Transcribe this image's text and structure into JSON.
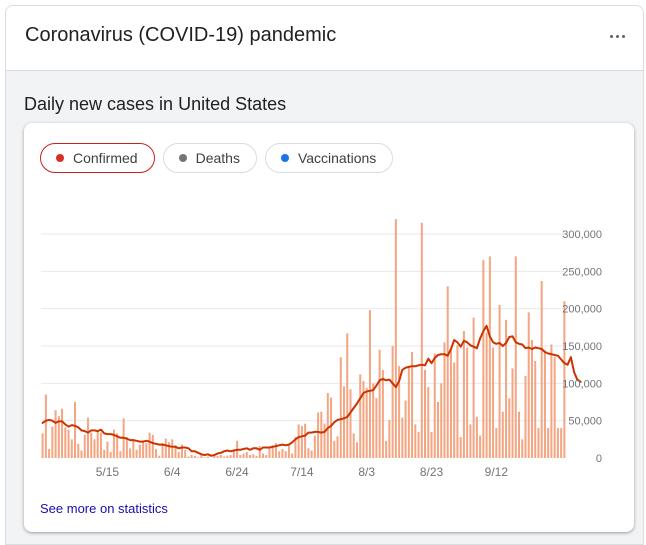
{
  "header": {
    "title": "Coronavirus (COVID-19) pandemic",
    "menu_icon": "more-horiz-icon"
  },
  "section": {
    "heading": "Daily new cases in United States"
  },
  "tabs": [
    {
      "label": "Confirmed",
      "color": "#d93025",
      "active": true
    },
    {
      "label": "Deaths",
      "color": "#757575",
      "active": false
    },
    {
      "label": "Vaccinations",
      "color": "#1a73e8",
      "active": false
    }
  ],
  "footer": {
    "link_label": "See more on statistics"
  },
  "colors": {
    "bar": "#f4a582",
    "line": "#cc3300",
    "grid": "#e8eaed",
    "axis_text": "#70757a"
  },
  "chart_data": {
    "type": "bar",
    "title": "",
    "xlabel": "",
    "ylabel": "",
    "ylim": [
      0,
      300000
    ],
    "yticks": [
      0,
      50000,
      100000,
      150000,
      200000,
      250000,
      300000
    ],
    "ytick_labels": [
      "0",
      "50,000",
      "100,000",
      "150,000",
      "200,000",
      "250,000",
      "300,000"
    ],
    "x_start": "4/25",
    "xtick_labels": [
      {
        "label": "5/15",
        "index": 20
      },
      {
        "label": "6/4",
        "index": 40
      },
      {
        "label": "6/24",
        "index": 60
      },
      {
        "label": "7/14",
        "index": 80
      },
      {
        "label": "8/3",
        "index": 100
      },
      {
        "label": "8/23",
        "index": 120
      },
      {
        "label": "9/12",
        "index": 140
      }
    ],
    "series": [
      {
        "type": "bar",
        "values": [
          33000,
          85000,
          12000,
          42000,
          64000,
          56000,
          66000,
          41000,
          38000,
          25000,
          75000,
          19000,
          10000,
          31000,
          54000,
          34000,
          25000,
          37000,
          34000,
          11000,
          22000,
          8000,
          38000,
          33000,
          9000,
          53000,
          28000,
          13000,
          25000,
          11000,
          18000,
          22000,
          20000,
          34000,
          31000,
          12000,
          3000,
          20000,
          26000,
          21000,
          25000,
          17000,
          8000,
          18000,
          11000,
          2000,
          4000,
          3000,
          1000,
          4000,
          1000,
          2000,
          0,
          5000,
          3000,
          4000,
          2000,
          3000,
          4000,
          11000,
          23000,
          4000,
          6000,
          8000,
          4000,
          5000,
          3000,
          16000,
          6000,
          4000,
          13000,
          17000,
          20000,
          9000,
          12000,
          9000,
          19000,
          6000,
          28000,
          45000,
          43000,
          46000,
          13000,
          10000,
          30000,
          61000,
          62000,
          46000,
          87000,
          81000,
          23000,
          29000,
          135000,
          96000,
          167000,
          92000,
          33000,
          21000,
          112000,
          103000,
          94000,
          198000,
          100000,
          80000,
          145000,
          118000,
          23000,
          51000,
          150000,
          320000,
          123000,
          54000,
          77000,
          122000,
          142000,
          45000,
          35000,
          315000,
          118000,
          95000,
          35000,
          140000,
          75000,
          100000,
          155000,
          230000,
          145000,
          128000,
          151000,
          28000,
          170000,
          148000,
          45000,
          188000,
          55000,
          30000,
          265000,
          168000,
          270000,
          148000,
          40000,
          205000,
          62000,
          185000,
          80000,
          120000,
          270000,
          62000,
          25000,
          110000,
          195000,
          158000,
          130000,
          40000,
          237000,
          144000,
          40000,
          152000,
          135000,
          40000,
          40000,
          210000
        ]
      },
      {
        "type": "line",
        "values": [
          47000,
          50000,
          51000,
          50000,
          47000,
          49000,
          49000,
          45000,
          42000,
          44000,
          43000,
          41000,
          37000,
          36000,
          34000,
          37000,
          37000,
          36000,
          38000,
          33000,
          32000,
          32000,
          31000,
          29000,
          27000,
          27000,
          26000,
          24000,
          24000,
          23000,
          22000,
          22000,
          23000,
          22000,
          20000,
          19000,
          18000,
          18000,
          17000,
          16000,
          15000,
          15000,
          13000,
          14000,
          14000,
          13000,
          9000,
          9000,
          7000,
          5000,
          4000,
          5000,
          3000,
          4000,
          6000,
          7000,
          9000,
          10000,
          9000,
          10000,
          11000,
          11000,
          12000,
          13000,
          11000,
          13000,
          13000,
          11000,
          14000,
          14000,
          14000,
          15000,
          16000,
          17000,
          18000,
          17000,
          18000,
          21000,
          25000,
          28000,
          29000,
          30000,
          34000,
          34000,
          35000,
          35000,
          34000,
          35000,
          40000,
          43000,
          48000,
          51000,
          52000,
          53000,
          55000,
          61000,
          67000,
          73000,
          80000,
          87000,
          89000,
          90000,
          91000,
          97000,
          104000,
          106000,
          104000,
          105000,
          100000,
          95000,
          103000,
          118000,
          121000,
          122000,
          123000,
          123000,
          124000,
          125000,
          124000,
          133000,
          127000,
          134000,
          138000,
          139000,
          139000,
          137000,
          146000,
          158000,
          155000,
          149000,
          157000,
          155000,
          151000,
          149000,
          147000,
          160000,
          170000,
          177000,
          163000,
          155000,
          153000,
          154000,
          150000,
          154000,
          162000,
          163000,
          155000,
          153000,
          152000,
          147000,
          148000,
          146000,
          148000,
          147000,
          146000,
          142000,
          140000,
          139000,
          138000,
          137000,
          132000,
          127000,
          125000,
          135000,
          115000,
          105000,
          102000
        ]
      }
    ]
  }
}
